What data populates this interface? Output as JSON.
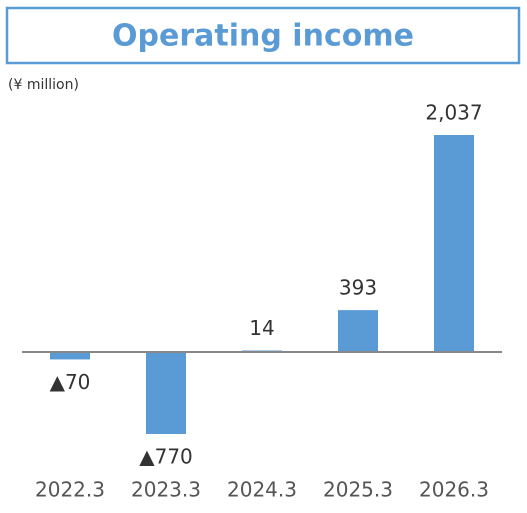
{
  "chart_data": {
    "type": "bar",
    "title": "Operating income",
    "unit_label": "(¥ million)",
    "categories": [
      "2022.3",
      "2023.3",
      "2024.3",
      "2025.3",
      "2026.3"
    ],
    "values": [
      -70,
      -770,
      14,
      393,
      2037
    ],
    "value_labels": [
      "▲70",
      "▲770",
      "14",
      "393",
      "2,037"
    ],
    "color": "#5b9bd5"
  }
}
